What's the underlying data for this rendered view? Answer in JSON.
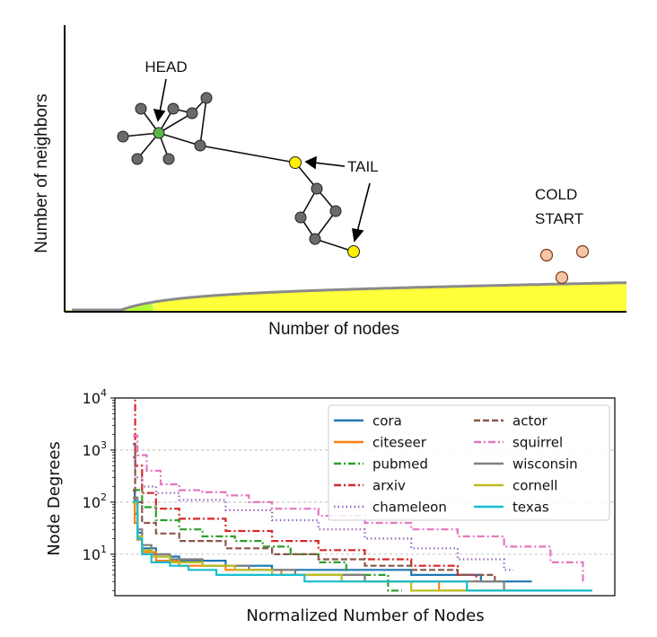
{
  "chart_data": [
    {
      "type": "area",
      "title": "",
      "xlabel": "Number of nodes",
      "ylabel": "Number of neighbors",
      "annotations": [
        "HEAD",
        "TAIL",
        "COLD START"
      ],
      "regions": [
        {
          "name": "head",
          "color": "#b4ff38"
        },
        {
          "name": "tail",
          "color": "#ffff3a"
        }
      ]
    },
    {
      "type": "line",
      "title": "",
      "xlabel": "Normalized Number of Nodes",
      "ylabel": "Node Degrees",
      "yscale": "log",
      "ylim": [
        1.6,
        10000
      ],
      "xlim": [
        0,
        1
      ],
      "yticks": [
        {
          "base": "10",
          "exp": "1",
          "value": 10
        },
        {
          "base": "10",
          "exp": "2",
          "value": 100
        },
        {
          "base": "10",
          "exp": "3",
          "value": 1000
        },
        {
          "base": "10",
          "exp": "4",
          "value": 10000
        }
      ],
      "grid": "horizontal-dashed",
      "legend_position": "top-right",
      "series": [
        {
          "name": "cora",
          "color": "#1f77b4",
          "dash": "solid",
          "max": 168,
          "end": 0.86,
          "steps": [
            [
              0.0,
              168
            ],
            [
              0.004,
              60
            ],
            [
              0.01,
              26
            ],
            [
              0.02,
              13
            ],
            [
              0.05,
              9
            ],
            [
              0.1,
              7.5
            ],
            [
              0.2,
              6
            ],
            [
              0.3,
              5
            ],
            [
              0.45,
              5
            ],
            [
              0.6,
              4
            ],
            [
              0.75,
              3
            ],
            [
              0.86,
              3
            ]
          ]
        },
        {
          "name": "citeseer",
          "color": "#ff7f0e",
          "dash": "solid",
          "max": 99,
          "end": 0.84,
          "steps": [
            [
              0.0,
              99
            ],
            [
              0.004,
              40
            ],
            [
              0.01,
              19
            ],
            [
              0.02,
              11
            ],
            [
              0.05,
              7.5
            ],
            [
              0.1,
              6
            ],
            [
              0.2,
              5
            ],
            [
              0.32,
              4
            ],
            [
              0.5,
              3
            ],
            [
              0.66,
              2
            ],
            [
              0.84,
              2
            ]
          ]
        },
        {
          "name": "pubmed",
          "color": "#2ca02c",
          "dash": "dashdot",
          "max": 171,
          "end": 0.58,
          "steps": [
            [
              0.0,
              171
            ],
            [
              0.02,
              80
            ],
            [
              0.05,
              45
            ],
            [
              0.1,
              30
            ],
            [
              0.15,
              22
            ],
            [
              0.22,
              18
            ],
            [
              0.28,
              14
            ],
            [
              0.34,
              10
            ],
            [
              0.4,
              7
            ],
            [
              0.46,
              4
            ],
            [
              0.55,
              2
            ],
            [
              0.58,
              2
            ]
          ]
        },
        {
          "name": "arxiv",
          "color": "#d62728",
          "dash": "dashdot",
          "max": 13000,
          "end": 0.74,
          "steps": [
            [
              0.0,
              13000
            ],
            [
              0.005,
              500
            ],
            [
              0.02,
              150
            ],
            [
              0.05,
              75
            ],
            [
              0.1,
              48
            ],
            [
              0.2,
              28
            ],
            [
              0.3,
              18
            ],
            [
              0.4,
              12
            ],
            [
              0.5,
              8
            ],
            [
              0.6,
              6
            ],
            [
              0.7,
              4
            ],
            [
              0.74,
              3
            ]
          ]
        },
        {
          "name": "chameleon",
          "color": "#9467bd",
          "dash": "dot",
          "max": 732,
          "end": 0.82,
          "steps": [
            [
              0.0,
              732
            ],
            [
              0.005,
              300
            ],
            [
              0.02,
              200
            ],
            [
              0.05,
              150
            ],
            [
              0.1,
              110
            ],
            [
              0.2,
              70
            ],
            [
              0.3,
              45
            ],
            [
              0.4,
              30
            ],
            [
              0.5,
              20
            ],
            [
              0.6,
              13
            ],
            [
              0.7,
              8
            ],
            [
              0.8,
              5
            ],
            [
              0.82,
              5
            ]
          ]
        },
        {
          "name": "actor",
          "color": "#8c564b",
          "dash": "dashed",
          "max": 1303,
          "end": 0.78,
          "steps": [
            [
              0.0,
              1303
            ],
            [
              0.005,
              100
            ],
            [
              0.02,
              40
            ],
            [
              0.05,
              25
            ],
            [
              0.1,
              18
            ],
            [
              0.2,
              13
            ],
            [
              0.3,
              10
            ],
            [
              0.4,
              8
            ],
            [
              0.5,
              6
            ],
            [
              0.6,
              5
            ],
            [
              0.7,
              4
            ],
            [
              0.78,
              3
            ]
          ]
        },
        {
          "name": "squirrel",
          "color": "#e377c2",
          "dash": "dashdot",
          "max": 1904,
          "end": 0.97,
          "steps": [
            [
              0.0,
              1904
            ],
            [
              0.01,
              800
            ],
            [
              0.03,
              400
            ],
            [
              0.06,
              220
            ],
            [
              0.1,
              170
            ],
            [
              0.15,
              155
            ],
            [
              0.2,
              135
            ],
            [
              0.25,
              100
            ],
            [
              0.3,
              75
            ],
            [
              0.4,
              55
            ],
            [
              0.5,
              40
            ],
            [
              0.6,
              30
            ],
            [
              0.7,
              22
            ],
            [
              0.8,
              14
            ],
            [
              0.9,
              7
            ],
            [
              0.97,
              3
            ]
          ]
        },
        {
          "name": "wisconsin",
          "color": "#7f7f7f",
          "dash": "solid",
          "max": 122,
          "end": 0.93,
          "steps": [
            [
              0.0,
              122
            ],
            [
              0.01,
              30
            ],
            [
              0.02,
              15
            ],
            [
              0.04,
              10
            ],
            [
              0.08,
              8
            ],
            [
              0.15,
              6
            ],
            [
              0.25,
              5
            ],
            [
              0.35,
              4
            ],
            [
              0.5,
              3
            ],
            [
              0.65,
              3
            ],
            [
              0.8,
              2
            ],
            [
              0.93,
              2
            ]
          ]
        },
        {
          "name": "cornell",
          "color": "#bcbd22",
          "dash": "solid",
          "max": 94,
          "end": 0.99,
          "steps": [
            [
              0.0,
              94
            ],
            [
              0.01,
              22
            ],
            [
              0.02,
              12
            ],
            [
              0.04,
              9
            ],
            [
              0.08,
              7
            ],
            [
              0.15,
              6
            ],
            [
              0.22,
              5
            ],
            [
              0.3,
              4
            ],
            [
              0.45,
              3
            ],
            [
              0.6,
              2
            ],
            [
              0.99,
              2
            ]
          ]
        },
        {
          "name": "texas",
          "color": "#17becf",
          "dash": "solid",
          "max": 104,
          "end": 0.99,
          "steps": [
            [
              0.0,
              104
            ],
            [
              0.01,
              20
            ],
            [
              0.02,
              10
            ],
            [
              0.04,
              7
            ],
            [
              0.08,
              6
            ],
            [
              0.12,
              5
            ],
            [
              0.18,
              4
            ],
            [
              0.35,
              4
            ],
            [
              0.37,
              3
            ],
            [
              0.7,
              3
            ],
            [
              0.72,
              2
            ],
            [
              0.99,
              2
            ]
          ]
        }
      ]
    }
  ]
}
